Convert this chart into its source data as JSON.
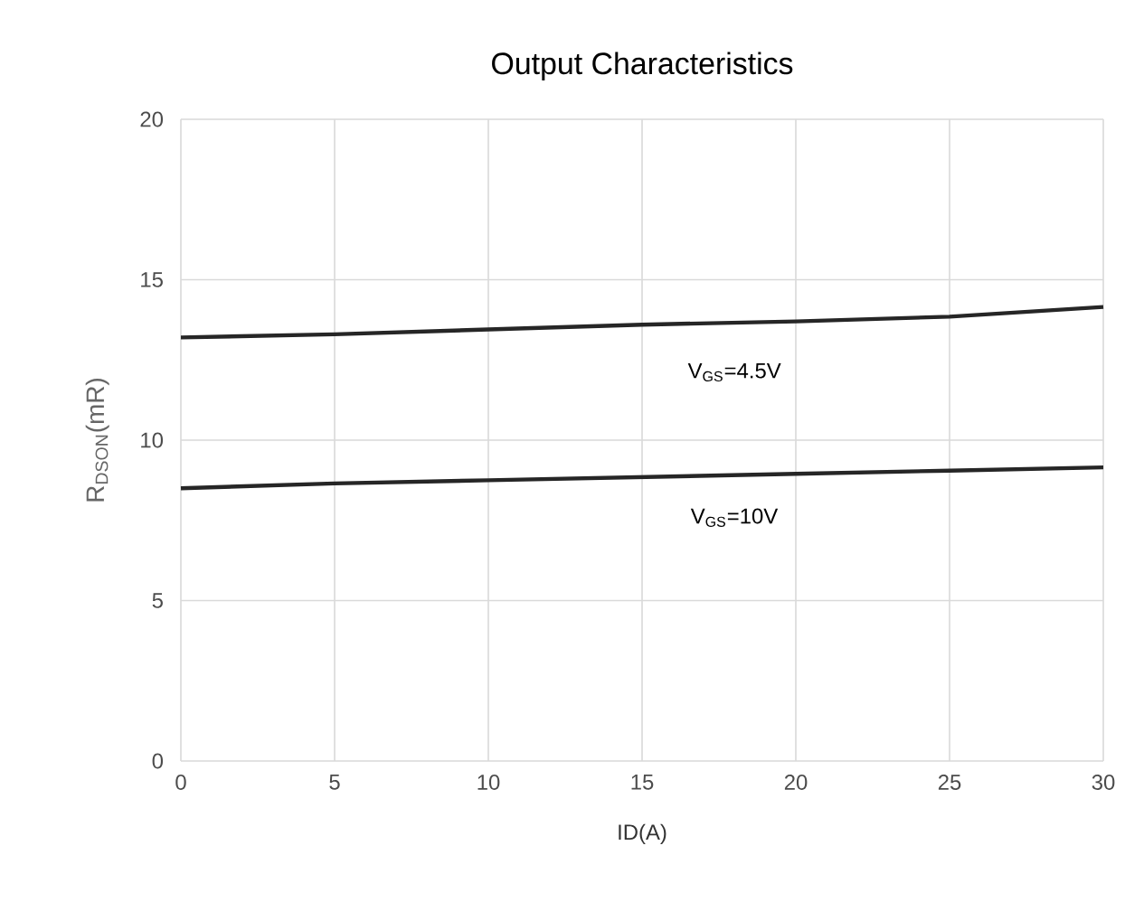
{
  "chart_data": {
    "type": "line",
    "title": "Output Characteristics",
    "xlabel": "ID(A)",
    "ylabel": "R$_{DSON}$(mR)",
    "series": [
      {
        "name": "V$_{GS}$=4.5V",
        "color": "#262626",
        "x": [
          0,
          5,
          10,
          15,
          20,
          25,
          30
        ],
        "values": [
          13.2,
          13.3,
          13.45,
          13.6,
          13.7,
          13.85,
          14.15
        ]
      },
      {
        "name": "V$_{GS}$=10V",
        "color": "#262626",
        "x": [
          0,
          5,
          10,
          15,
          20,
          25,
          30
        ],
        "values": [
          8.5,
          8.65,
          8.75,
          8.85,
          8.95,
          9.05,
          9.15
        ]
      }
    ],
    "xlim": [
      0,
      30
    ],
    "ylim": [
      0,
      20
    ],
    "xticks": [
      0,
      5,
      10,
      15,
      20,
      25,
      30
    ],
    "yticks": [
      0,
      5,
      10,
      15,
      20
    ],
    "grid": true,
    "line_style": "solid",
    "marker": "none"
  }
}
